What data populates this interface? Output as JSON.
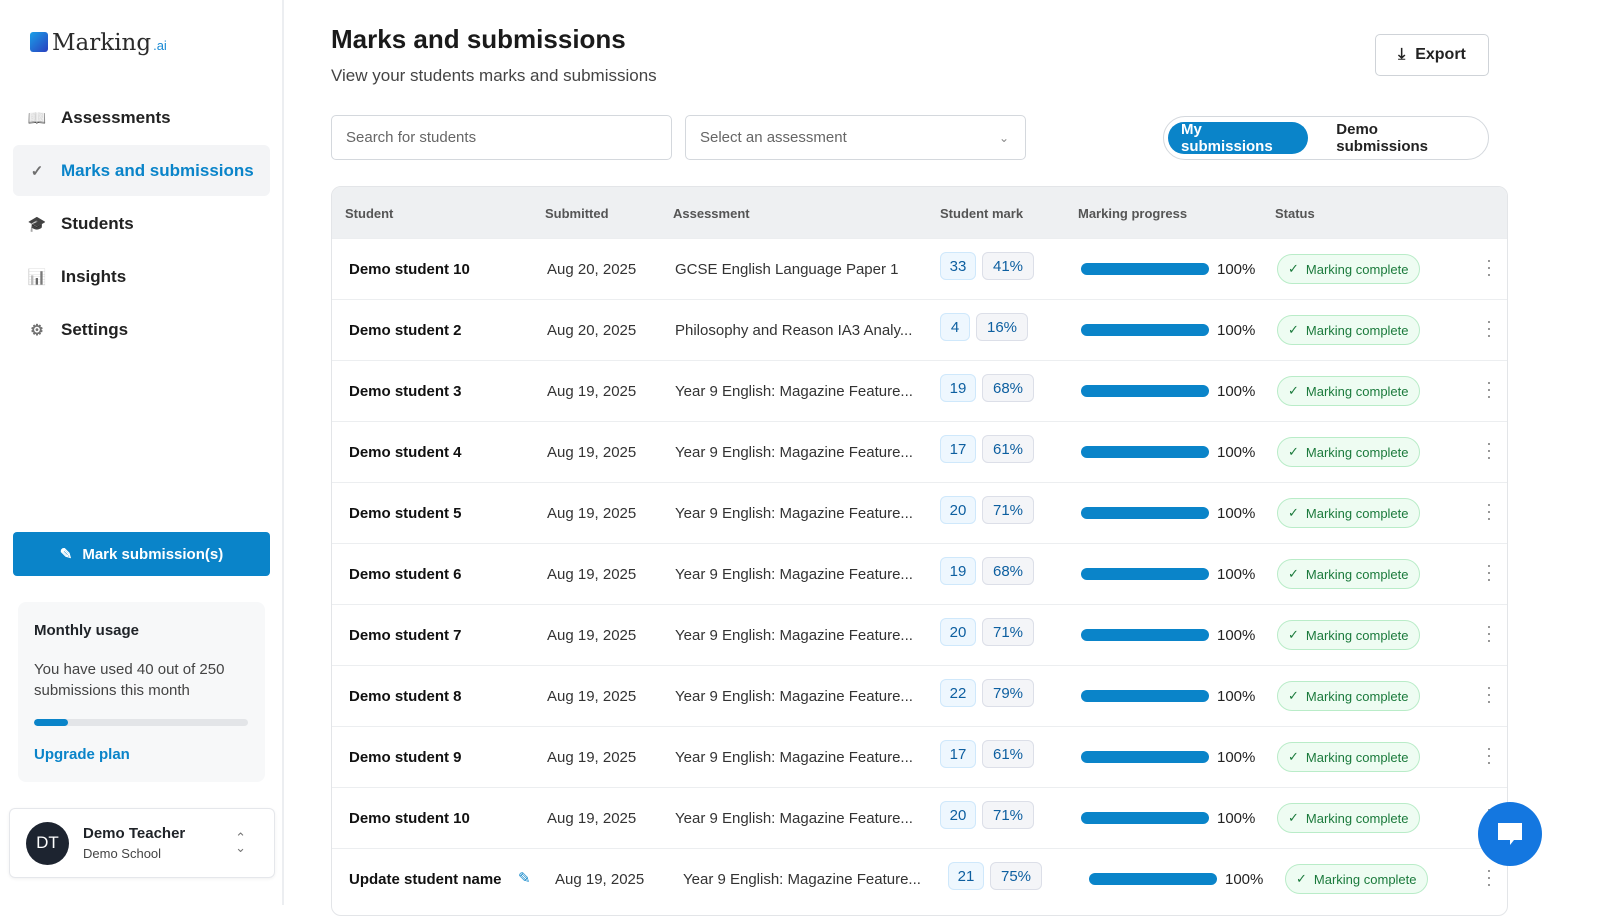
{
  "sidebar": {
    "logo": {
      "text": "Marking",
      "suffix": ".ai"
    },
    "items": [
      {
        "label": "Assessments",
        "icon": "book-icon"
      },
      {
        "label": "Marks and submissions",
        "icon": "badge-check-icon",
        "active": true
      },
      {
        "label": "Students",
        "icon": "graduation-cap-icon"
      },
      {
        "label": "Insights",
        "icon": "bar-chart-icon"
      },
      {
        "label": "Settings",
        "icon": "gear-icon"
      }
    ],
    "mark_button": "Mark submission(s)",
    "usage": {
      "title": "Monthly usage",
      "text": "You have used 40 out of 250 submissions this month",
      "used": 40,
      "total": 250,
      "upgrade": "Upgrade plan"
    },
    "user": {
      "initials": "DT",
      "name": "Demo Teacher",
      "school": "Demo School"
    }
  },
  "header": {
    "title": "Marks and submissions",
    "subtitle": "View your students marks and submissions",
    "export": "Export"
  },
  "filters": {
    "search_placeholder": "Search for students",
    "assessment_placeholder": "Select an assessment",
    "toggle": [
      "My submissions",
      "Demo submissions"
    ]
  },
  "table": {
    "columns": [
      "Student",
      "Submitted",
      "Assessment",
      "Student mark",
      "Marking progress",
      "Status"
    ],
    "rows": [
      {
        "student": "Demo student 10",
        "submitted": "Aug 20, 2025",
        "assessment": "GCSE English Language Paper 1",
        "mark": "33",
        "percent": "41%",
        "progress": "100%",
        "status": "Marking complete"
      },
      {
        "student": "Demo student 2",
        "submitted": "Aug 20, 2025",
        "assessment": "Philosophy and Reason IA3 Analy...",
        "mark": "4",
        "percent": "16%",
        "progress": "100%",
        "status": "Marking complete"
      },
      {
        "student": "Demo student 3",
        "submitted": "Aug 19, 2025",
        "assessment": "Year 9 English: Magazine Feature...",
        "mark": "19",
        "percent": "68%",
        "progress": "100%",
        "status": "Marking complete"
      },
      {
        "student": "Demo student 4",
        "submitted": "Aug 19, 2025",
        "assessment": "Year 9 English: Magazine Feature...",
        "mark": "17",
        "percent": "61%",
        "progress": "100%",
        "status": "Marking complete"
      },
      {
        "student": "Demo student 5",
        "submitted": "Aug 19, 2025",
        "assessment": "Year 9 English: Magazine Feature...",
        "mark": "20",
        "percent": "71%",
        "progress": "100%",
        "status": "Marking complete"
      },
      {
        "student": "Demo student 6",
        "submitted": "Aug 19, 2025",
        "assessment": "Year 9 English: Magazine Feature...",
        "mark": "19",
        "percent": "68%",
        "progress": "100%",
        "status": "Marking complete"
      },
      {
        "student": "Demo student 7",
        "submitted": "Aug 19, 2025",
        "assessment": "Year 9 English: Magazine Feature...",
        "mark": "20",
        "percent": "71%",
        "progress": "100%",
        "status": "Marking complete"
      },
      {
        "student": "Demo student 8",
        "submitted": "Aug 19, 2025",
        "assessment": "Year 9 English: Magazine Feature...",
        "mark": "22",
        "percent": "79%",
        "progress": "100%",
        "status": "Marking complete"
      },
      {
        "student": "Demo student 9",
        "submitted": "Aug 19, 2025",
        "assessment": "Year 9 English: Magazine Feature...",
        "mark": "17",
        "percent": "61%",
        "progress": "100%",
        "status": "Marking complete"
      },
      {
        "student": "Demo student 10",
        "submitted": "Aug 19, 2025",
        "assessment": "Year 9 English: Magazine Feature...",
        "mark": "20",
        "percent": "71%",
        "progress": "100%",
        "status": "Marking complete"
      },
      {
        "student": "Update student name",
        "submitted": "Aug 19, 2025",
        "assessment": "Year 9 English: Magazine Feature...",
        "mark": "21",
        "percent": "75%",
        "progress": "100%",
        "status": "Marking complete",
        "editable": true
      }
    ]
  },
  "colors": {
    "accent": "#0a84c9",
    "status_green": "#1b7a3c"
  }
}
